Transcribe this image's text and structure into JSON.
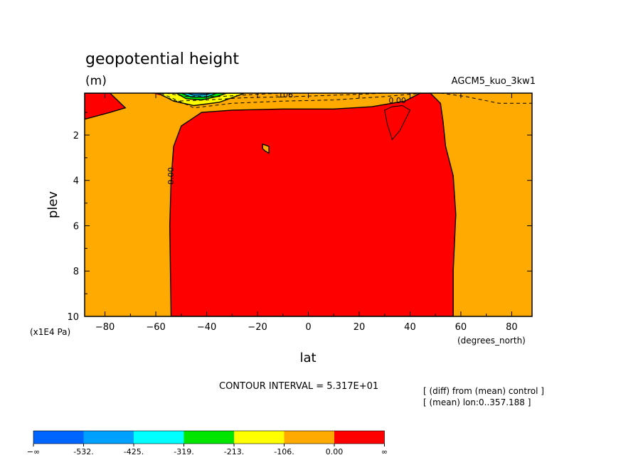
{
  "chart_data": {
    "type": "heatmap",
    "title": "geopotential height",
    "units": "(m)",
    "run_label": "AGCM5_kuo_3kw1",
    "xlabel": "lat",
    "ylabel": "plev",
    "x_unit": "(degrees_north)",
    "y_unit": "(x1E4 Pa)",
    "xlim": [
      -88,
      88
    ],
    "ylim": [
      10,
      0.15
    ],
    "x_ticks": [
      -80,
      -60,
      -40,
      -20,
      0,
      20,
      40,
      60,
      80
    ],
    "x_tick_labels": [
      "−80",
      "−60",
      "−40",
      "−20",
      "0",
      "20",
      "40",
      "60",
      "80"
    ],
    "y_ticks": [
      2,
      4,
      6,
      8,
      10
    ],
    "y_tick_labels": [
      "2",
      "4",
      "6",
      "8",
      "10"
    ],
    "contour_interval_text": "CONTOUR INTERVAL = 5.317E+01",
    "notes": [
      "[ (diff) from (mean) control ]",
      "[ (mean) lon:0..357.188 ]"
    ],
    "contour_labels": [
      {
        "text": "-106.",
        "lat": -9,
        "plev": 0.15
      },
      {
        "text": "0.00",
        "lat": 35,
        "plev": 0.4
      },
      {
        "text": "0.00",
        "lat": -53,
        "plev": 3.8
      }
    ],
    "colorbar": {
      "levels": [
        "−∞",
        "-532.",
        "-425.",
        "-319.",
        "-213.",
        "-106.",
        "0.00",
        "∞"
      ],
      "colors": [
        "#0064ff",
        "#00a0ff",
        "#00ffff",
        "#00e600",
        "#ffff00",
        "#ffaa00",
        "#ff0000"
      ]
    },
    "colors": {
      "red": "#ff0000",
      "orange": "#ffaa00",
      "yellow": "#ffff00",
      "green": "#00e600",
      "cyan": "#00ffff",
      "sky": "#00a0ff",
      "blue": "#0064ff"
    },
    "regions": {
      "tropics_red": [
        [
          -54,
          10
        ],
        [
          -54.5,
          6
        ],
        [
          -54,
          4
        ],
        [
          -53,
          2.5
        ],
        [
          -50,
          1.6
        ],
        [
          -46,
          1.3
        ],
        [
          -42,
          1
        ],
        [
          -30,
          0.9
        ],
        [
          -10,
          0.85
        ],
        [
          10,
          0.85
        ],
        [
          25,
          0.75
        ],
        [
          38,
          0.5
        ],
        [
          44,
          0.15
        ],
        [
          48,
          0.15
        ],
        [
          52,
          0.6
        ],
        [
          53,
          1.4
        ],
        [
          54,
          2.5
        ],
        [
          57,
          3.8
        ],
        [
          58,
          5.5
        ],
        [
          57,
          8
        ],
        [
          57,
          10
        ]
      ],
      "nw_red": [
        [
          -88,
          0.15
        ],
        [
          -78,
          0.15
        ],
        [
          -72,
          0.8
        ],
        [
          -78,
          1
        ],
        [
          -88,
          1.3
        ]
      ],
      "red_top_strip": [
        [
          -62,
          0.15
        ],
        [
          -58,
          0.25
        ],
        [
          -50,
          0.35
        ],
        [
          -42,
          0.33
        ],
        [
          -35,
          0.2
        ],
        [
          -30,
          0.15
        ]
      ],
      "yellow_cap": [
        [
          -59,
          0.15
        ],
        [
          -53,
          0.5
        ],
        [
          -45,
          0.7
        ],
        [
          -35,
          0.55
        ],
        [
          -25,
          0.15
        ]
      ],
      "green_cap": [
        [
          -52,
          0.15
        ],
        [
          -48,
          0.4
        ],
        [
          -42,
          0.45
        ],
        [
          -36,
          0.3
        ],
        [
          -32,
          0.15
        ]
      ],
      "cyan_cap": [
        [
          -50,
          0.15
        ],
        [
          -46,
          0.32
        ],
        [
          -40,
          0.32
        ],
        [
          -36,
          0.15
        ]
      ],
      "sky_cap": [
        [
          -48,
          0.15
        ],
        [
          -45,
          0.24
        ],
        [
          -40,
          0.22
        ],
        [
          -38,
          0.15
        ]
      ],
      "orange_spot": [
        [
          -18,
          2.4
        ],
        [
          -15.5,
          2.5
        ],
        [
          -15.5,
          2.8
        ],
        [
          -17,
          2.7
        ],
        [
          -18,
          2.6
        ]
      ],
      "hole_contour": [
        [
          30,
          0.9
        ],
        [
          33,
          0.75
        ],
        [
          37,
          0.7
        ],
        [
          40,
          0.9
        ],
        [
          36,
          1.8
        ],
        [
          33,
          2.2
        ],
        [
          31,
          1.5
        ]
      ]
    },
    "dashed_contours": [
      [
        [
          -58,
          0.15
        ],
        [
          -45,
          0.8
        ],
        [
          -30,
          0.6
        ],
        [
          -10,
          0.5
        ],
        [
          10,
          0.45
        ],
        [
          30,
          0.3
        ],
        [
          45,
          0.15
        ]
      ],
      [
        [
          -60,
          0.15
        ],
        [
          -52,
          0.5
        ],
        [
          -40,
          0.45
        ],
        [
          -25,
          0.35
        ],
        [
          -5,
          0.3
        ],
        [
          20,
          0.2
        ],
        [
          30,
          0.15
        ]
      ],
      [
        [
          -56,
          0.15
        ],
        [
          -48,
          0.3
        ],
        [
          -35,
          0.3
        ],
        [
          -20,
          0.2
        ],
        [
          -10,
          0.15
        ]
      ],
      [
        [
          52,
          0.15
        ],
        [
          62,
          0.3
        ],
        [
          75,
          0.6
        ],
        [
          88,
          0.6
        ]
      ]
    ]
  }
}
